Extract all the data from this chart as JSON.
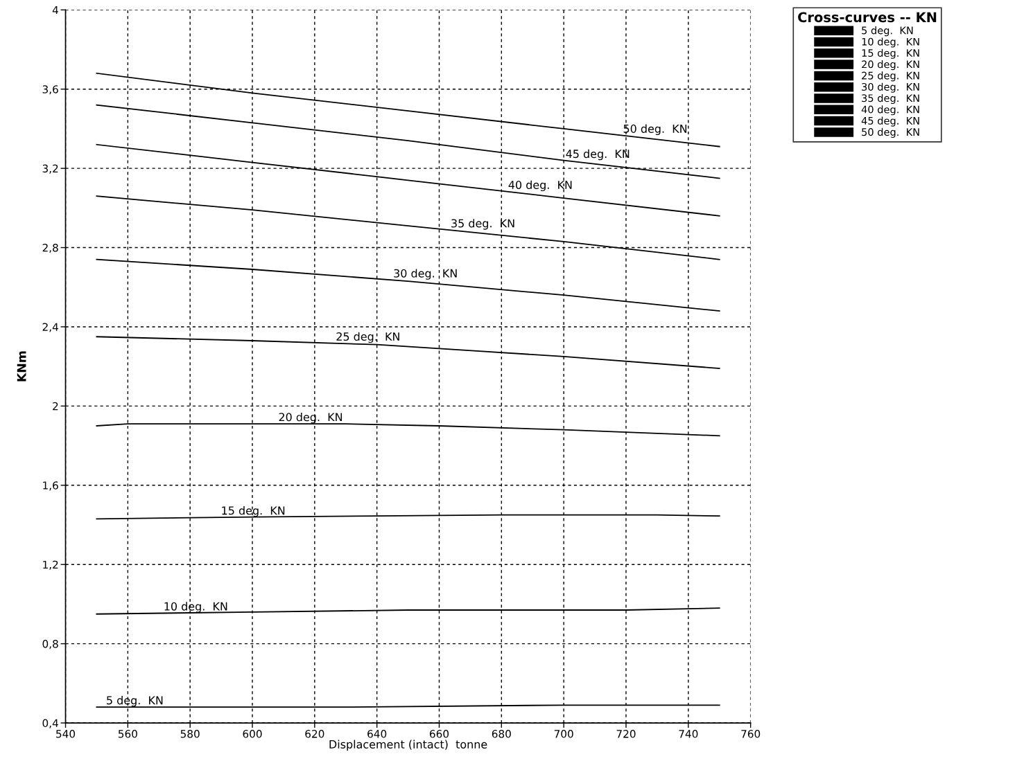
{
  "chart_data": {
    "type": "line",
    "xlabel": "Displacement (intact)  tonne",
    "ylabel": "KNm",
    "legend_title": "Cross-curves -- KN",
    "legend": "top right",
    "grid": true,
    "line_style": "solid",
    "marker": "none",
    "xlim": [
      540,
      760
    ],
    "ylim": [
      0.4,
      4
    ],
    "xticks": [
      540,
      560,
      580,
      600,
      620,
      640,
      660,
      680,
      700,
      720,
      740,
      760
    ],
    "yticks": [
      {
        "value": 0.4,
        "label": "0,4"
      },
      {
        "value": 0.8,
        "label": "0,8"
      },
      {
        "value": 1.2,
        "label": "1,2"
      },
      {
        "value": 1.6,
        "label": "1,6"
      },
      2,
      {
        "value": 2.4,
        "label": "2,4"
      },
      {
        "value": 2.8,
        "label": "2,8"
      },
      {
        "value": 3.2,
        "label": "3,2"
      },
      {
        "value": 3.6,
        "label": "3,6"
      },
      4
    ],
    "series": [
      {
        "name": "5 deg.  KN",
        "color": "#000000",
        "x": [
          550,
          630,
          700,
          750
        ],
        "values": [
          0.48,
          0.48,
          0.49,
          0.49
        ]
      },
      {
        "name": "10 deg.  KN",
        "color": "#000000",
        "x": [
          550,
          600,
          650,
          720,
          750
        ],
        "values": [
          0.95,
          0.96,
          0.97,
          0.97,
          0.98
        ]
      },
      {
        "name": "15 deg.  KN",
        "color": "#000000",
        "x": [
          550,
          600,
          640,
          680,
          730,
          750
        ],
        "values": [
          1.43,
          1.44,
          1.445,
          1.45,
          1.45,
          1.445
        ]
      },
      {
        "name": "20 deg.  KN",
        "color": "#000000",
        "x": [
          550,
          560,
          630,
          660,
          700,
          750
        ],
        "values": [
          1.9,
          1.91,
          1.91,
          1.9,
          1.88,
          1.85
        ]
      },
      {
        "name": "25 deg.  KN",
        "color": "#000000",
        "x": [
          550,
          600,
          640,
          700,
          750
        ],
        "values": [
          2.35,
          2.33,
          2.31,
          2.25,
          2.19
        ]
      },
      {
        "name": "30 deg.  KN",
        "color": "#000000",
        "x": [
          550,
          600,
          650,
          700,
          750
        ],
        "values": [
          2.74,
          2.69,
          2.63,
          2.56,
          2.48
        ]
      },
      {
        "name": "35 deg.  KN",
        "color": "#000000",
        "x": [
          550,
          600,
          650,
          700,
          750
        ],
        "values": [
          3.06,
          2.99,
          2.91,
          2.83,
          2.74
        ]
      },
      {
        "name": "40 deg.  KN",
        "color": "#000000",
        "x": [
          550,
          600,
          650,
          700,
          750
        ],
        "values": [
          3.32,
          3.23,
          3.14,
          3.05,
          2.96
        ]
      },
      {
        "name": "45 deg.  KN",
        "color": "#000000",
        "x": [
          550,
          600,
          650,
          700,
          750
        ],
        "values": [
          3.52,
          3.43,
          3.34,
          3.24,
          3.15
        ]
      },
      {
        "name": "50 deg.  KN",
        "color": "#000000",
        "x": [
          550,
          600,
          650,
          700,
          750
        ],
        "values": [
          3.68,
          3.58,
          3.49,
          3.4,
          3.31
        ]
      }
    ]
  }
}
